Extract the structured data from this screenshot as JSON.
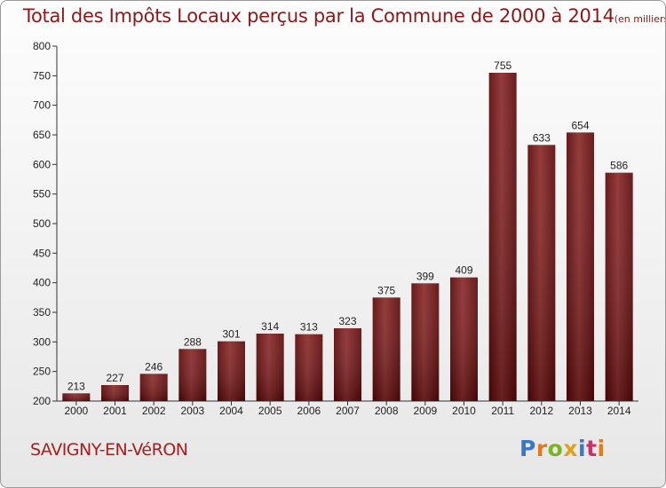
{
  "chart_data": {
    "type": "bar",
    "title": "Total des Impôts Locaux perçus par la Commune de 2000 à 2014",
    "unit": "(en milliers d'€)",
    "categories": [
      "2000",
      "2001",
      "2002",
      "2003",
      "2004",
      "2005",
      "2006",
      "2007",
      "2008",
      "2009",
      "2010",
      "2011",
      "2012",
      "2013",
      "2014"
    ],
    "values": [
      213,
      227,
      246,
      288,
      301,
      314,
      313,
      323,
      375,
      399,
      409,
      755,
      633,
      654,
      586
    ],
    "ylim": [
      200,
      800
    ],
    "yticks": [
      200,
      250,
      300,
      350,
      400,
      450,
      500,
      550,
      600,
      650,
      700,
      750,
      800
    ],
    "xlabel": "",
    "ylabel": "",
    "grid": false,
    "bar_color": "#6a0e0e"
  },
  "commune": "SAVIGNY-EN-VéRON",
  "logo": {
    "letters": [
      "P",
      "r",
      "o",
      "x",
      "i",
      "t",
      "i"
    ],
    "colors": [
      "#3a78c6",
      "#e07a1a",
      "#7ab51d",
      "#e0a21a",
      "#3a78c6",
      "#d0306a",
      "#e07a1a"
    ]
  }
}
